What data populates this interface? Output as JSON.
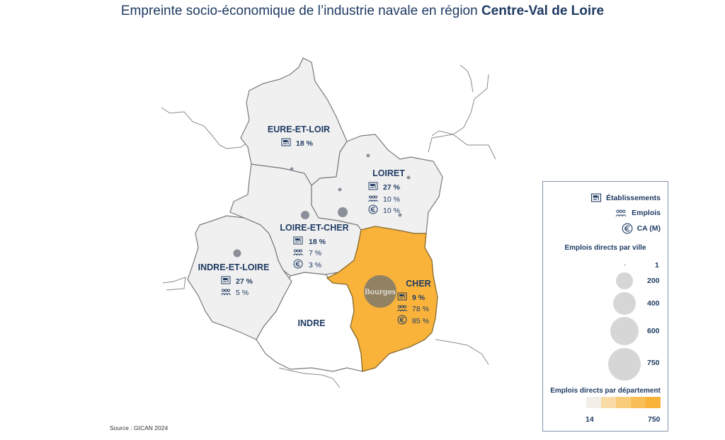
{
  "title": {
    "main": "Empreinte socio-économique de l’industrie navale en région ",
    "region": "Centre-Val de Loire"
  },
  "colors": {
    "primary": "#1f3b63",
    "highlight": "#f9b33b",
    "default_fill": "#f0f0f0",
    "empty_fill": "#ffffff",
    "city_bubble": "#8a8f99",
    "bourges_bubble": "#8c8066"
  },
  "departments": {
    "eure_et_loir": {
      "name": "EURE-ET-LOIR",
      "etablissements": "18 %"
    },
    "loiret": {
      "name": "LOIRET",
      "etablissements": "27 %",
      "emplois": "10 %",
      "ca": "10 %"
    },
    "loir_et_cher": {
      "name": "LOIRE-ET-CHER",
      "etablissements": "18 %",
      "emplois": "7 %",
      "ca": "3 %"
    },
    "indre_et_loire": {
      "name": "INDRE-ET-LOIRE",
      "etablissements": "27 %",
      "emplois": "5 %"
    },
    "cher": {
      "name": "CHER",
      "etablissements": "9 %",
      "emplois": "78 %",
      "ca": "85 %"
    },
    "indre": {
      "name": "INDRE"
    }
  },
  "cities": {
    "bourges": "Bourges"
  },
  "legend": {
    "etablissements": "Établissements",
    "emplois": "Emplois",
    "ca": "CA (M)",
    "bubbles_title": "Emplois directs par ville",
    "bubbles": [
      "1",
      "200",
      "400",
      "600",
      "750"
    ],
    "scale_title": "Emplois directs par département",
    "scale_min": "14",
    "scale_max": "750",
    "scale_colors": [
      "#f3efe8",
      "#f8dba5",
      "#f9cc7a",
      "#f9be55",
      "#f9b33b"
    ]
  },
  "source": "Source : GICAN 2024",
  "icons": [
    "factory-icon",
    "people-icon",
    "euro-icon"
  ]
}
